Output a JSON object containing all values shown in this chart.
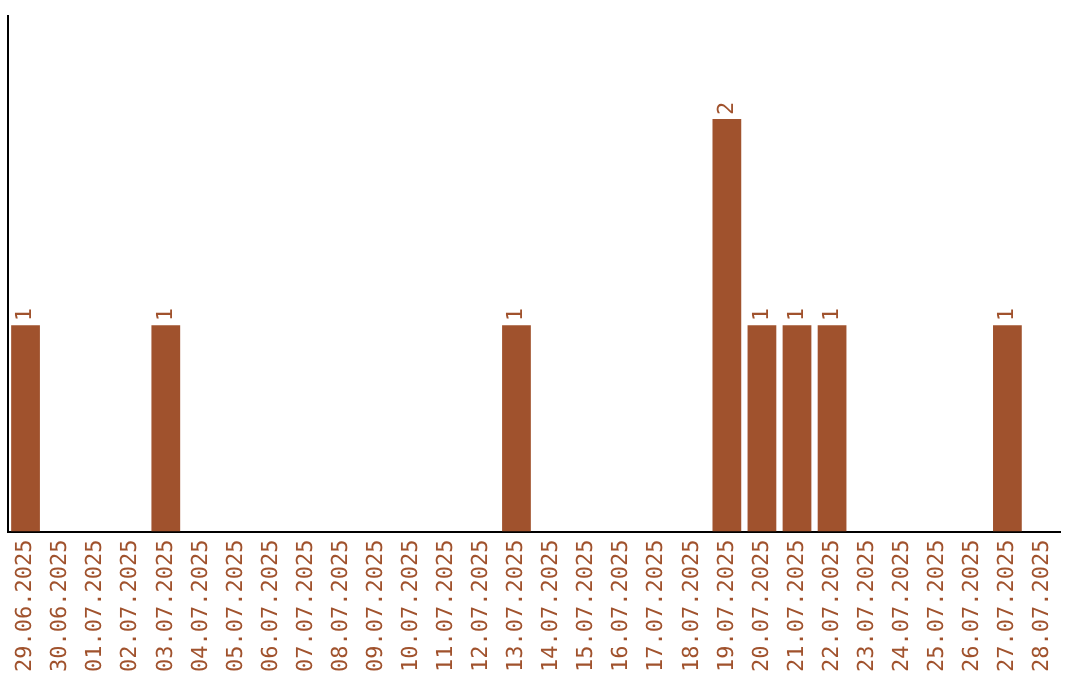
{
  "chart_data": {
    "type": "bar",
    "categories": [
      "29.06.2025",
      "30.06.2025",
      "01.07.2025",
      "02.07.2025",
      "03.07.2025",
      "04.07.2025",
      "05.07.2025",
      "06.07.2025",
      "07.07.2025",
      "08.07.2025",
      "09.07.2025",
      "10.07.2025",
      "11.07.2025",
      "12.07.2025",
      "13.07.2025",
      "14.07.2025",
      "15.07.2025",
      "16.07.2025",
      "17.07.2025",
      "18.07.2025",
      "19.07.2025",
      "20.07.2025",
      "21.07.2025",
      "22.07.2025",
      "23.07.2025",
      "24.07.2025",
      "25.07.2025",
      "26.07.2025",
      "27.07.2025",
      "28.07.2025"
    ],
    "values": [
      1,
      0,
      0,
      0,
      1,
      0,
      0,
      0,
      0,
      0,
      0,
      0,
      0,
      0,
      1,
      0,
      0,
      0,
      0,
      0,
      2,
      1,
      1,
      1,
      0,
      0,
      0,
      0,
      1,
      0
    ],
    "value_labels": [
      "1",
      null,
      null,
      null,
      "1",
      null,
      null,
      null,
      null,
      null,
      null,
      null,
      null,
      null,
      "1",
      null,
      null,
      null,
      null,
      null,
      "2",
      "1",
      "1",
      "1",
      null,
      null,
      null,
      null,
      "1",
      null
    ],
    "color": "#a0522d",
    "grid": false,
    "legend": false,
    "tick_labels": "x"
  }
}
